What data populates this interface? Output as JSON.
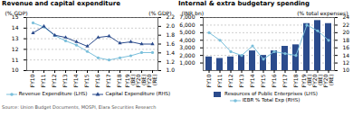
{
  "chart_data": [
    {
      "type": "line",
      "title": "Revenue and capital expenditure",
      "categories": [
        "FY10",
        "FY11",
        "FY12",
        "FY13",
        "FY14",
        "FY15",
        "FY16",
        "FY17",
        "FY18",
        "FY19\n(BE)",
        "FY20\n(BE)",
        "FY20\n(RE)"
      ],
      "series": [
        {
          "name": "Revenue Expenditure (LHS)",
          "color": "#7abfdb",
          "marker": "circle",
          "values": [
            14.5,
            14.1,
            13.3,
            12.8,
            12.4,
            11.8,
            11.2,
            11.0,
            11.2,
            11.4,
            11.7,
            11.7
          ]
        },
        {
          "name": "Capital Expenditure (RHS)",
          "color": "#2b4b8c",
          "marker": "triangle",
          "axis": "y2",
          "values": [
            1.85,
            2.0,
            1.8,
            1.75,
            1.65,
            1.55,
            1.75,
            1.78,
            1.62,
            1.65,
            1.6,
            1.6
          ]
        }
      ],
      "ylabel": "(% GDP)",
      "y2label": "(% GDP)",
      "ylim": [
        10,
        15
      ],
      "yticks": [
        10,
        11,
        12,
        13,
        14,
        15
      ],
      "y2lim": [
        1.0,
        2.2
      ],
      "y2ticks": [
        {
          "value": 1.0,
          "label": "1.0"
        },
        1.2,
        1.4,
        1.6,
        1.8,
        {
          "value": 2.0,
          "label": "2.0"
        },
        2.2
      ],
      "grid": true,
      "legend": "bottom"
    },
    {
      "type": "bar",
      "title": "Internal & extra budgetary spending",
      "categories": [
        "FY10",
        "FY11",
        "FY12",
        "FY13",
        "FY14",
        "FY15",
        "FY16",
        "FY17",
        "FY18",
        "FY19\n(BE)",
        "FY20\n(BE)",
        "FY20\n(RE)"
      ],
      "series": [
        {
          "name": "Resources of Public Enterprises (LHS)",
          "type": "bar",
          "color": "#2b4b8c",
          "values": [
            1800,
            1600,
            1800,
            2000,
            2600,
            2000,
            2600,
            3200,
            3400,
            6200,
            6600,
            6200
          ]
        },
        {
          "name": "IEBR % Total Exp (RHS)",
          "type": "line",
          "color": "#7abfdb",
          "marker": "circle",
          "axis": "y2",
          "values": [
            20.0,
            18.0,
            15.0,
            14.0,
            16.5,
            13.0,
            15.0,
            14.5,
            14.0,
            22.0,
            20.5,
            18.0
          ]
        }
      ],
      "ylabel": "(INR bn)",
      "y2label": "(% total expenses)",
      "ylim": [
        0,
        7000
      ],
      "yticks": [
        {
          "value": 1000,
          "label": "1,000"
        },
        {
          "value": 2000,
          "label": "2,000"
        },
        {
          "value": 3000,
          "label": "3,000"
        },
        {
          "value": 4000,
          "label": "4,000"
        },
        {
          "value": 5000,
          "label": "5,000"
        },
        {
          "value": 6000,
          "label": "6,000"
        },
        {
          "value": 7000,
          "label": "7,000"
        }
      ],
      "y2lim": [
        10,
        24
      ],
      "y2ticks": [
        10,
        12,
        14,
        16,
        18,
        20,
        22,
        24
      ],
      "grid": true,
      "legend": "bottom"
    }
  ],
  "source": "Source: Union Budget Documents, MOSPI, Elara Securities Research"
}
